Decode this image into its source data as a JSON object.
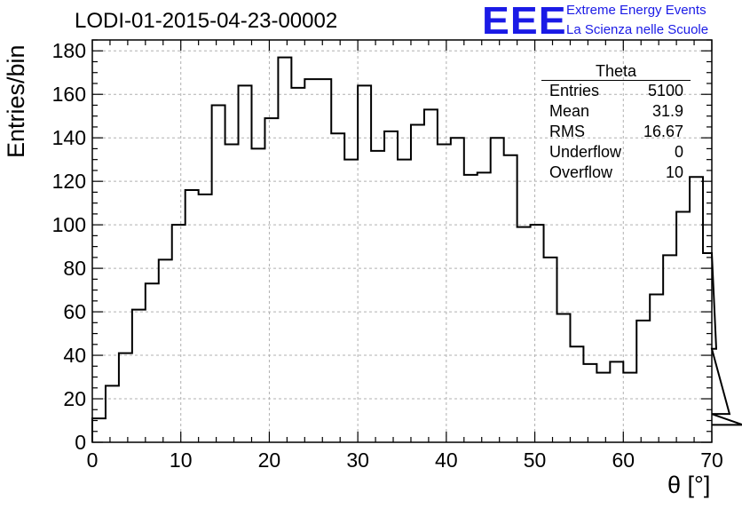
{
  "header": {
    "title": "LODI-01-2015-04-23-00002",
    "logo_mark": "EEE",
    "logo_line1": "Extreme Energy Events",
    "logo_line2": "La Scienza nelle Scuole"
  },
  "stats": {
    "title": "Theta",
    "rows": [
      {
        "label": "Entries",
        "value": "5100"
      },
      {
        "label": "Mean",
        "value": "31.9"
      },
      {
        "label": "RMS",
        "value": "16.67"
      },
      {
        "label": "Underflow",
        "value": "0"
      },
      {
        "label": "Overflow",
        "value": "10"
      }
    ]
  },
  "chart_data": {
    "type": "histogram",
    "xlabel": "θ [°]",
    "ylabel": "Entries/bin",
    "xlim": [
      0,
      70
    ],
    "ylim": [
      0,
      185
    ],
    "grid": true,
    "bin_width": 1.5,
    "line_color": "#000000",
    "x_ticks": [
      0,
      10,
      20,
      30,
      40,
      50,
      60,
      70
    ],
    "y_ticks": [
      0,
      20,
      40,
      60,
      80,
      100,
      120,
      140,
      160,
      180
    ],
    "values": [
      11,
      26,
      41,
      61,
      73,
      84,
      100,
      116,
      114,
      155,
      137,
      164,
      135,
      149,
      177,
      163,
      167,
      167,
      142,
      130,
      164,
      134,
      143,
      130,
      146,
      153,
      137,
      140,
      123,
      124,
      140,
      132,
      99,
      100,
      85,
      59,
      44,
      36,
      32,
      37,
      32,
      56,
      68,
      86,
      106,
      122,
      87,
      43,
      13,
      8
    ]
  }
}
